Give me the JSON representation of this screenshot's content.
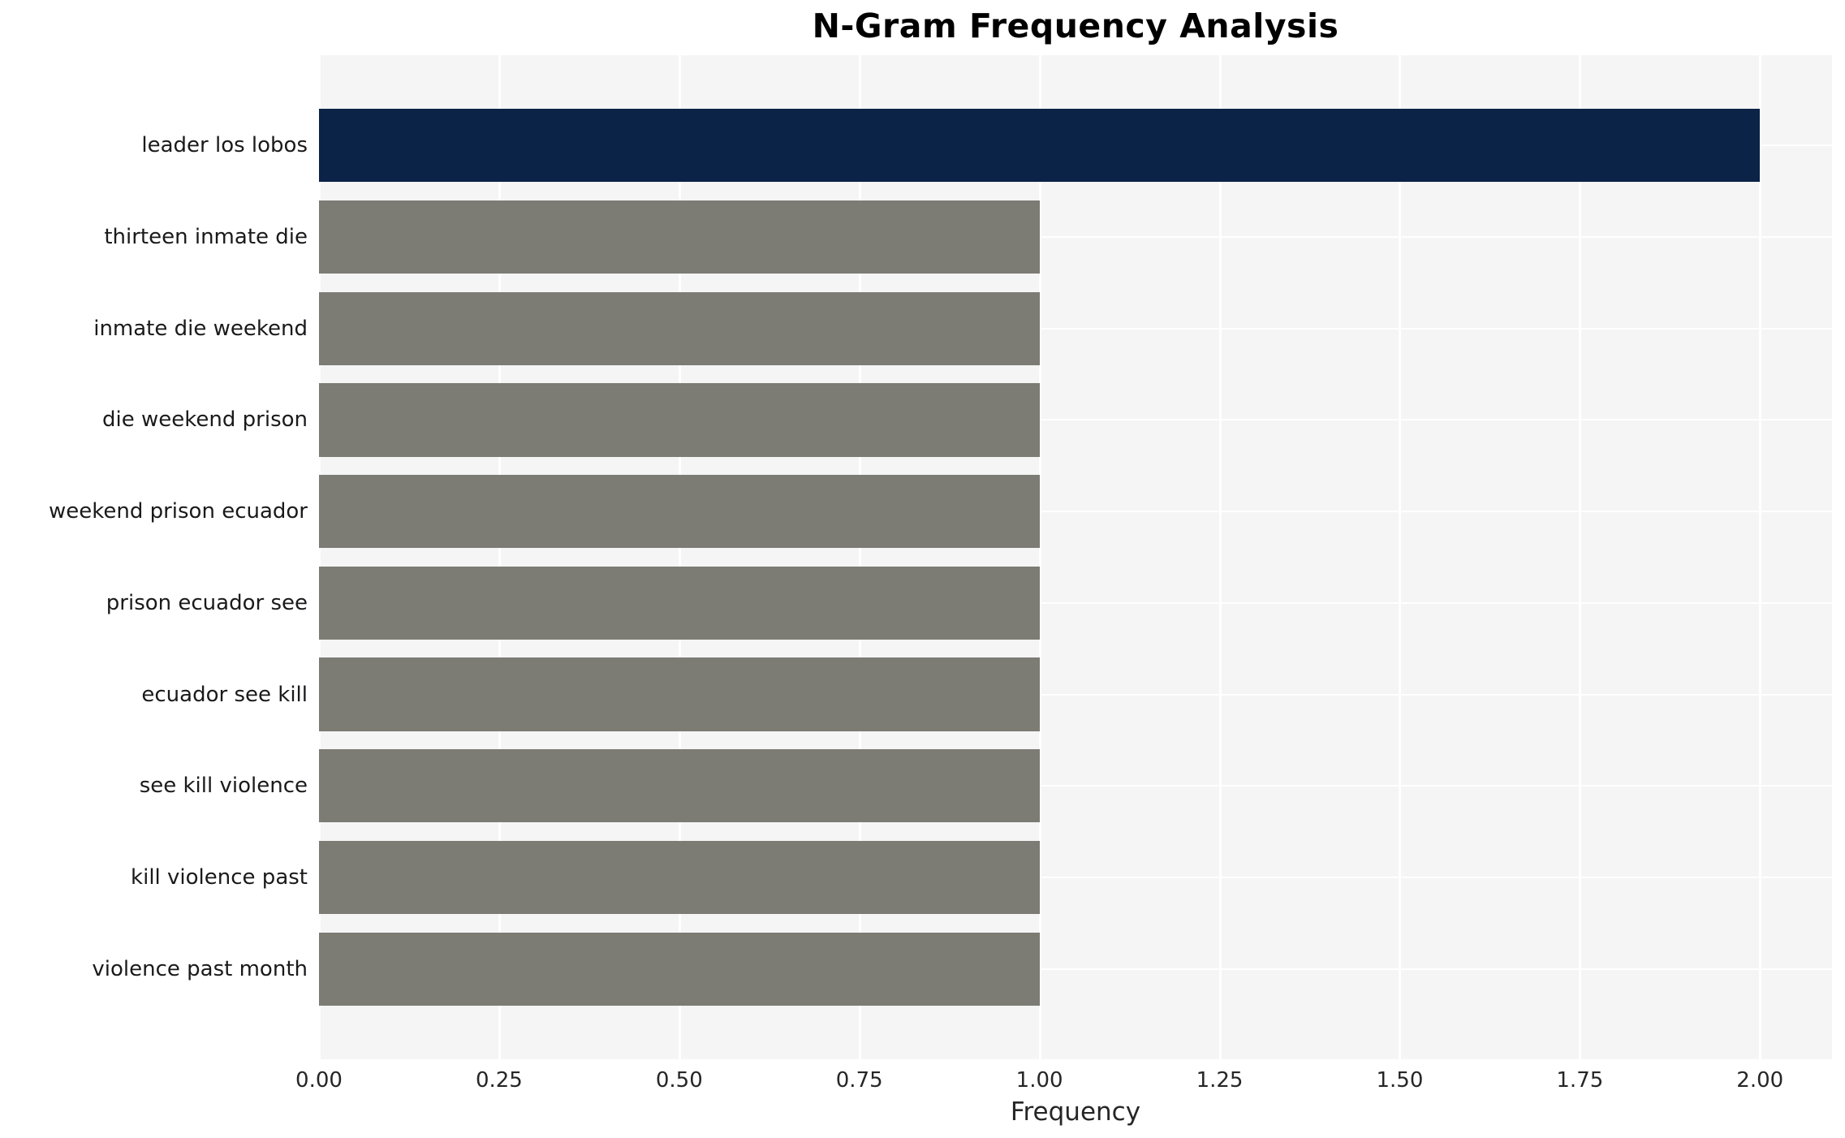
{
  "chart_data": {
    "type": "bar",
    "orientation": "horizontal",
    "title": "N-Gram Frequency Analysis",
    "xlabel": "Frequency",
    "ylabel": "",
    "categories": [
      "leader los lobos",
      "thirteen inmate die",
      "inmate die weekend",
      "die weekend prison",
      "weekend prison ecuador",
      "prison ecuador see",
      "ecuador see kill",
      "see kill violence",
      "kill violence past",
      "violence past month"
    ],
    "values": [
      2,
      1,
      1,
      1,
      1,
      1,
      1,
      1,
      1,
      1
    ],
    "bar_colors": [
      "#0b2347",
      "#7c7b74",
      "#7c7b74",
      "#7c7b74",
      "#7c7b74",
      "#7c7b74",
      "#7c7b74",
      "#7c7b74",
      "#7c7b74",
      "#7c7b74"
    ],
    "xlim": [
      0,
      2.1
    ],
    "xticks": [
      0,
      0.25,
      0.5,
      0.75,
      1.0,
      1.25,
      1.5,
      1.75,
      2.0
    ],
    "xtick_labels": [
      "0.00",
      "0.25",
      "0.50",
      "0.75",
      "1.00",
      "1.25",
      "1.50",
      "1.75",
      "2.00"
    ],
    "grid": "on",
    "legend": "none",
    "colors": {
      "plot_background": "#f5f5f5",
      "grid_line": "#ffffff",
      "highlight_bar": "#0b2347",
      "default_bar": "#7c7b74"
    }
  }
}
